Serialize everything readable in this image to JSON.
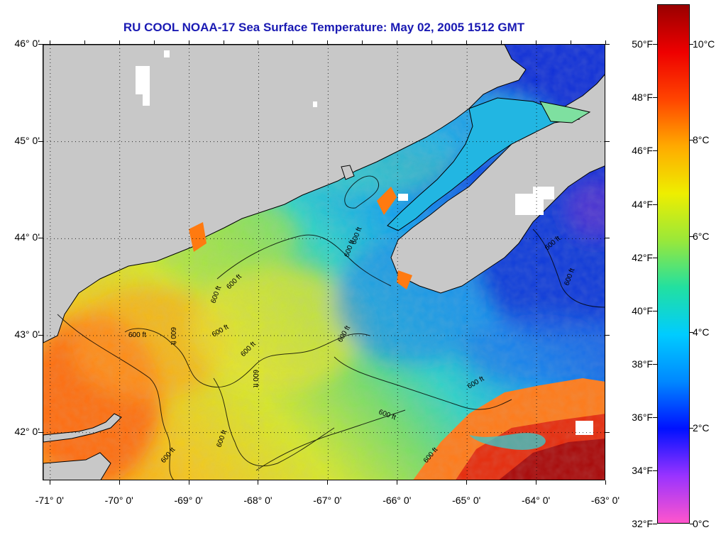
{
  "title": "RU COOL  NOAA-17  Sea Surface Temperature:  May 02, 2005 1512 GMT",
  "map": {
    "lon_range": [
      -71.1,
      -63.0
    ],
    "lat_range": [
      41.5,
      46.0
    ],
    "latitude_labels": [
      {
        "value": 46.0,
        "label": "46° 0'"
      },
      {
        "value": 45.0,
        "label": "45° 0'"
      },
      {
        "value": 44.0,
        "label": "44° 0'"
      },
      {
        "value": 43.0,
        "label": "43° 0'"
      },
      {
        "value": 42.0,
        "label": "42° 0'"
      }
    ],
    "longitude_labels": [
      {
        "value": -71.0,
        "label": "-71° 0'"
      },
      {
        "value": -70.0,
        "label": "-70° 0'"
      },
      {
        "value": -69.0,
        "label": "-69° 0'"
      },
      {
        "value": -68.0,
        "label": "-68° 0'"
      },
      {
        "value": -67.0,
        "label": "-67° 0'"
      },
      {
        "value": -66.0,
        "label": "-66° 0'"
      },
      {
        "value": -65.0,
        "label": "-65° 0'"
      },
      {
        "value": -64.0,
        "label": "-64° 0'"
      },
      {
        "value": -63.0,
        "label": "-63° 0'"
      }
    ],
    "contour_labels": [
      "600 ft",
      "600 ft",
      "600 ft",
      "600 ft",
      "600 ft",
      "600 ft",
      "600 ft",
      "600 ft",
      "600 ft",
      "600 ft",
      "600 ft",
      "600 ft",
      "600 ft",
      "600 ft",
      "600 ft",
      "600 ft",
      "600 ft"
    ],
    "land_color": "#c8c8c8",
    "gridlines": true
  },
  "colorbar": {
    "fahrenheit_labels": [
      {
        "value": 50,
        "label": "50°F"
      },
      {
        "value": 48,
        "label": "48°F"
      },
      {
        "value": 46,
        "label": "46°F"
      },
      {
        "value": 44,
        "label": "44°F"
      },
      {
        "value": 42,
        "label": "42°F"
      },
      {
        "value": 40,
        "label": "40°F"
      },
      {
        "value": 38,
        "label": "38°F"
      },
      {
        "value": 36,
        "label": "36°F"
      },
      {
        "value": 34,
        "label": "34°F"
      },
      {
        "value": 32,
        "label": "32°F"
      }
    ],
    "celsius_labels": [
      {
        "value": 10,
        "label": "10°C"
      },
      {
        "value": 8,
        "label": "8°C"
      },
      {
        "value": 6,
        "label": "6°C"
      },
      {
        "value": 4,
        "label": "4°C"
      },
      {
        "value": 2,
        "label": "2°C"
      },
      {
        "value": 0,
        "label": "0°C"
      }
    ],
    "colors": [
      "#ff55cc",
      "#9933ff",
      "#0011ff",
      "#0088ff",
      "#00ccff",
      "#22e0a0",
      "#99e83a",
      "#eeee00",
      "#ffaa00",
      "#ff4400",
      "#ee0000",
      "#990000"
    ]
  }
}
